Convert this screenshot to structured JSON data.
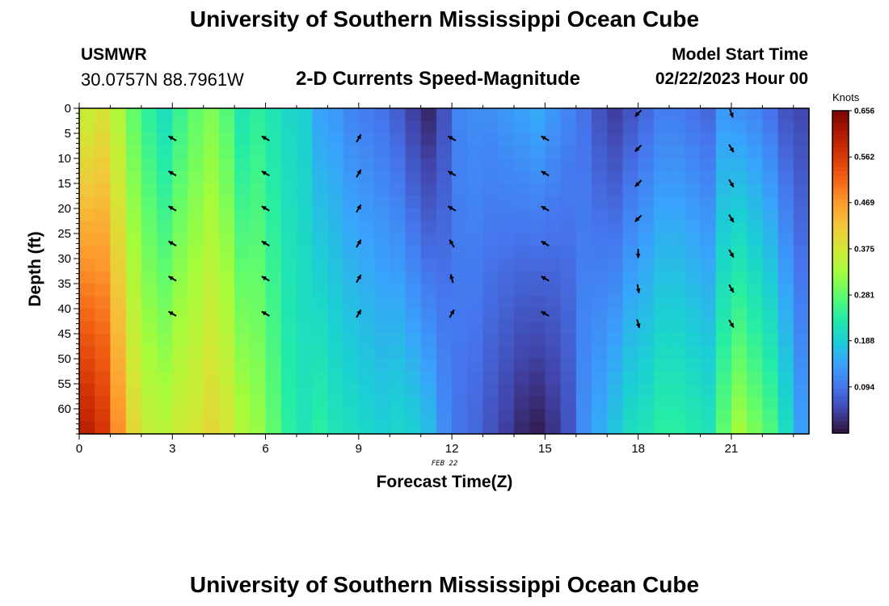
{
  "header": {
    "title": "University of Southern Mississippi Ocean Cube",
    "station": "USMWR",
    "coords": "30.0757N  88.7961W",
    "plot_title": "2-D Currents Speed-Magnitude",
    "start_label": "Model Start Time",
    "start_value": "02/22/2023 Hour 00"
  },
  "footer": {
    "title": "University of Southern Mississippi Ocean Cube"
  },
  "date_label": "FEB 22",
  "colors": {
    "colormap": [
      "#30123b",
      "#4145ab",
      "#4675ed",
      "#39a2fc",
      "#1bcfd4",
      "#24eca6",
      "#61fc6c",
      "#a4fc3b",
      "#d1e834",
      "#f3c63a",
      "#fe9b2d",
      "#f36315",
      "#d93806",
      "#b11901",
      "#7a0402"
    ]
  },
  "chart_data": {
    "type": "heatmap",
    "title": "2-D Currents Speed-Magnitude",
    "xlabel": "Forecast Time(Z)",
    "ylabel": "Depth (ft)",
    "xlim": [
      0,
      23.5
    ],
    "ylim": [
      65,
      0
    ],
    "x_ticks": [
      0,
      3,
      6,
      9,
      12,
      15,
      18,
      21
    ],
    "y_ticks": [
      0,
      5,
      10,
      15,
      20,
      25,
      30,
      35,
      40,
      45,
      50,
      55,
      60
    ],
    "colorbar": {
      "unit": "Knots",
      "min": 0.0,
      "max": 0.656,
      "ticks": [
        0.094,
        0.188,
        0.281,
        0.375,
        0.469,
        0.562,
        0.656
      ]
    },
    "speed_by_hour": [
      {
        "hour": 0,
        "top": 0.36,
        "bottom": 0.6
      },
      {
        "hour": 0.5,
        "top": 0.38,
        "bottom": 0.57
      },
      {
        "hour": 1,
        "top": 0.34,
        "bottom": 0.48
      },
      {
        "hour": 1.5,
        "top": 0.28,
        "bottom": 0.4
      },
      {
        "hour": 2,
        "top": 0.24,
        "bottom": 0.36
      },
      {
        "hour": 2.5,
        "top": 0.21,
        "bottom": 0.35
      },
      {
        "hour": 3,
        "top": 0.25,
        "bottom": 0.37
      },
      {
        "hour": 3.5,
        "top": 0.28,
        "bottom": 0.38
      },
      {
        "hour": 4,
        "top": 0.3,
        "bottom": 0.4
      },
      {
        "hour": 4.5,
        "top": 0.27,
        "bottom": 0.38
      },
      {
        "hour": 5,
        "top": 0.22,
        "bottom": 0.34
      },
      {
        "hour": 5.5,
        "top": 0.24,
        "bottom": 0.32
      },
      {
        "hour": 6,
        "top": 0.22,
        "bottom": 0.28
      },
      {
        "hour": 6.5,
        "top": 0.2,
        "bottom": 0.24
      },
      {
        "hour": 7,
        "top": 0.19,
        "bottom": 0.22
      },
      {
        "hour": 7.5,
        "top": 0.14,
        "bottom": 0.24
      },
      {
        "hour": 8,
        "top": 0.13,
        "bottom": 0.22
      },
      {
        "hour": 8.5,
        "top": 0.11,
        "bottom": 0.21
      },
      {
        "hour": 9,
        "top": 0.1,
        "bottom": 0.2
      },
      {
        "hour": 9.5,
        "top": 0.09,
        "bottom": 0.19
      },
      {
        "hour": 10,
        "top": 0.07,
        "bottom": 0.2
      },
      {
        "hour": 10.5,
        "top": 0.04,
        "bottom": 0.19
      },
      {
        "hour": 11,
        "top": 0.02,
        "bottom": 0.17
      },
      {
        "hour": 11.5,
        "top": 0.06,
        "bottom": 0.12
      },
      {
        "hour": 12,
        "top": 0.11,
        "bottom": 0.09
      },
      {
        "hour": 12.5,
        "top": 0.12,
        "bottom": 0.08
      },
      {
        "hour": 13,
        "top": 0.12,
        "bottom": 0.06
      },
      {
        "hour": 13.5,
        "top": 0.13,
        "bottom": 0.04
      },
      {
        "hour": 14,
        "top": 0.14,
        "bottom": 0.02
      },
      {
        "hour": 14.5,
        "top": 0.15,
        "bottom": 0.01
      },
      {
        "hour": 15,
        "top": 0.13,
        "bottom": 0.03
      },
      {
        "hour": 15.5,
        "top": 0.11,
        "bottom": 0.06
      },
      {
        "hour": 16,
        "top": 0.09,
        "bottom": 0.12
      },
      {
        "hour": 16.5,
        "top": 0.06,
        "bottom": 0.15
      },
      {
        "hour": 17,
        "top": 0.04,
        "bottom": 0.18
      },
      {
        "hour": 17.5,
        "top": 0.06,
        "bottom": 0.21
      },
      {
        "hour": 18,
        "top": 0.08,
        "bottom": 0.22
      },
      {
        "hour": 18.5,
        "top": 0.1,
        "bottom": 0.24
      },
      {
        "hour": 19,
        "top": 0.1,
        "bottom": 0.24
      },
      {
        "hour": 19.5,
        "top": 0.09,
        "bottom": 0.23
      },
      {
        "hour": 20,
        "top": 0.08,
        "bottom": 0.22
      },
      {
        "hour": 20.5,
        "top": 0.13,
        "bottom": 0.28
      },
      {
        "hour": 21,
        "top": 0.12,
        "bottom": 0.33
      },
      {
        "hour": 21.5,
        "top": 0.11,
        "bottom": 0.3
      },
      {
        "hour": 22,
        "top": 0.09,
        "bottom": 0.27
      },
      {
        "hour": 22.5,
        "top": 0.06,
        "bottom": 0.21
      },
      {
        "hour": 23,
        "top": 0.05,
        "bottom": 0.14
      }
    ],
    "vector_depths": [
      6,
      13,
      20,
      27,
      34,
      41
    ],
    "vectors": [
      {
        "hour": 3,
        "directions_deg": [
          300,
          300,
          300,
          300,
          300,
          300
        ]
      },
      {
        "hour": 6,
        "directions_deg": [
          300,
          300,
          300,
          300,
          300,
          300
        ]
      },
      {
        "hour": 9,
        "directions_deg": [
          30,
          30,
          30,
          30,
          30,
          30
        ]
      },
      {
        "hour": 12,
        "directions_deg": [
          300,
          300,
          300,
          330,
          345,
          30
        ]
      },
      {
        "hour": 15,
        "directions_deg": [
          300,
          300,
          300,
          300,
          300,
          300
        ]
      },
      {
        "hour": 18,
        "directions_deg": [
          225,
          225,
          225,
          225,
          180,
          170,
          165
        ]
      },
      {
        "hour": 21,
        "directions_deg": [
          160,
          150,
          150,
          150,
          150,
          150,
          150
        ]
      }
    ],
    "vector_depths_18_21": [
      1,
      8,
      15,
      22,
      29,
      36,
      43
    ]
  }
}
